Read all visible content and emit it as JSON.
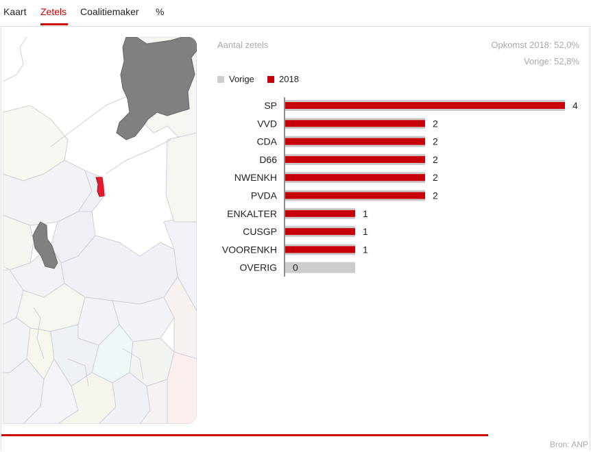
{
  "tabs": [
    {
      "label": "Kaart",
      "active": false
    },
    {
      "label": "Zetels",
      "active": true
    },
    {
      "label": "Coalitiemaker",
      "active": false
    },
    {
      "label": "%",
      "active": false
    }
  ],
  "chart_header": {
    "title": "Aantal zetels",
    "turnout_2018": "Opkomst 2018: 52,0%",
    "turnout_previous": "Vorige: 52,8%"
  },
  "legend": {
    "previous_label": "Vorige",
    "current_label": "2018"
  },
  "colors": {
    "accent": "#c8000a",
    "previous": "#cccccc",
    "map_highlight": "#e8192c",
    "map_dark": "#808080"
  },
  "chart_data": {
    "type": "bar",
    "orientation": "horizontal",
    "categories": [
      "SP",
      "VVD",
      "CDA",
      "D66",
      "NWENKH",
      "PVDA",
      "ENKALTER",
      "CUSGP",
      "VOORENKH",
      "OVERIG"
    ],
    "series": [
      {
        "name": "Vorige",
        "values": [
          4,
          2,
          2,
          2,
          2,
          2,
          1,
          1,
          1,
          1
        ]
      },
      {
        "name": "2018",
        "values": [
          4,
          2,
          2,
          2,
          2,
          2,
          1,
          1,
          1,
          0
        ]
      }
    ],
    "data_labels": [
      "4",
      "2",
      "2",
      "2",
      "2",
      "2",
      "1",
      "1",
      "1",
      "0"
    ],
    "xlim": [
      0,
      4
    ],
    "title": "Aantal zetels",
    "legend_position": "top-left"
  },
  "progress": {
    "fraction": 0.83
  },
  "source": "Bron: ANP"
}
